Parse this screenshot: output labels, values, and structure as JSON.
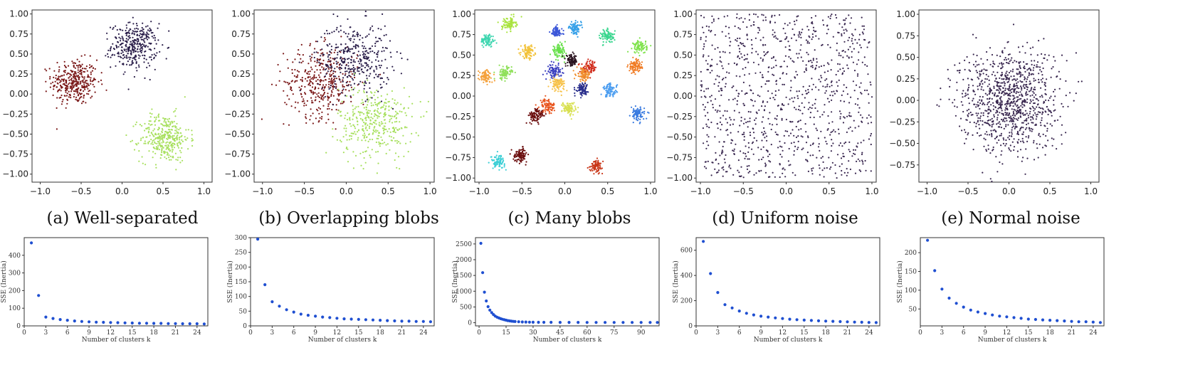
{
  "chart_data": [
    {
      "id": "a",
      "type": "scatter",
      "caption": "(a) Well-separated",
      "xlim": [
        -1.1,
        1.1
      ],
      "ylim": [
        -1.1,
        1.05
      ],
      "xticks": [
        -1.0,
        -0.5,
        0.0,
        0.5,
        1.0
      ],
      "yticks": [
        -1.0,
        -0.75,
        -0.5,
        -0.25,
        0.0,
        0.25,
        0.5,
        0.75,
        1.0
      ],
      "xtick_labels": [
        "−1.0",
        "−0.5",
        "0.0",
        "0.5",
        "1.0"
      ],
      "ytick_labels": [
        "−1.00",
        "−0.75",
        "−0.50",
        "−0.25",
        "0.00",
        "0.25",
        "0.50",
        "0.75",
        "1.00"
      ],
      "clusters": [
        {
          "center": [
            -0.58,
            0.15
          ],
          "spread": 0.14,
          "n": 350,
          "color": "#7a1818"
        },
        {
          "center": [
            0.15,
            0.6
          ],
          "spread": 0.14,
          "n": 350,
          "color": "#2b1f4a"
        },
        {
          "center": [
            0.52,
            -0.55
          ],
          "spread": 0.15,
          "n": 350,
          "color": "#a8e05f"
        }
      ]
    },
    {
      "id": "b",
      "type": "scatter",
      "caption": "(b) Overlapping blobs",
      "xlim": [
        -1.1,
        1.05
      ],
      "ylim": [
        -1.1,
        1.05
      ],
      "xticks": [
        -1.0,
        -0.5,
        0.0,
        0.5,
        1.0
      ],
      "yticks": [
        -1.0,
        -0.75,
        -0.5,
        -0.25,
        0.0,
        0.25,
        0.5,
        0.75,
        1.0
      ],
      "xtick_labels": [
        "−1.0",
        "−0.5",
        "0.0",
        "0.5",
        "1.0"
      ],
      "ytick_labels": [
        "−1.00",
        "−0.75",
        "−0.50",
        "−0.25",
        "0.00",
        "0.25",
        "0.50",
        "0.75",
        "1.00"
      ],
      "clusters": [
        {
          "center": [
            -0.3,
            0.15
          ],
          "spread": 0.22,
          "n": 380,
          "color": "#7a1818"
        },
        {
          "center": [
            0.1,
            0.45
          ],
          "spread": 0.22,
          "n": 380,
          "color": "#2b1f4a"
        },
        {
          "center": [
            0.35,
            -0.35
          ],
          "spread": 0.22,
          "n": 380,
          "color": "#a8e05f"
        }
      ]
    },
    {
      "id": "c",
      "type": "scatter",
      "caption": "(c) Many blobs",
      "xlim": [
        -1.05,
        1.05
      ],
      "ylim": [
        -1.05,
        1.05
      ],
      "xticks": [
        -1.0,
        -0.5,
        0.0,
        0.5,
        1.0
      ],
      "yticks": [
        -1.0,
        -0.75,
        -0.5,
        -0.25,
        0.0,
        0.25,
        0.5,
        0.75,
        1.0
      ],
      "xtick_labels": [
        "−1.0",
        "−0.5",
        "0.0",
        "0.5",
        "1.0"
      ],
      "ytick_labels": [
        "−1.00",
        "−0.75",
        "−0.50",
        "−0.25",
        "0.00",
        "0.25",
        "0.50",
        "0.75",
        "1.00"
      ],
      "clusters": [
        {
          "center": [
            -0.9,
            0.68
          ],
          "spread": 0.04,
          "n": 90,
          "color": "#3fd6b0"
        },
        {
          "center": [
            -0.65,
            0.88
          ],
          "spread": 0.04,
          "n": 90,
          "color": "#a9e33e"
        },
        {
          "center": [
            -0.92,
            0.24
          ],
          "spread": 0.04,
          "n": 90,
          "color": "#f4a13c"
        },
        {
          "center": [
            -0.7,
            0.28
          ],
          "spread": 0.04,
          "n": 90,
          "color": "#8fe05a"
        },
        {
          "center": [
            -0.43,
            0.54
          ],
          "spread": 0.04,
          "n": 90,
          "color": "#f2c23a"
        },
        {
          "center": [
            -0.1,
            0.78
          ],
          "spread": 0.035,
          "n": 90,
          "color": "#3c57d8"
        },
        {
          "center": [
            0.12,
            0.83
          ],
          "spread": 0.035,
          "n": 90,
          "color": "#36a0e8"
        },
        {
          "center": [
            -0.07,
            0.55
          ],
          "spread": 0.04,
          "n": 90,
          "color": "#67e04a"
        },
        {
          "center": [
            0.08,
            0.43
          ],
          "spread": 0.035,
          "n": 90,
          "color": "#2b1420"
        },
        {
          "center": [
            0.28,
            0.34
          ],
          "spread": 0.045,
          "n": 90,
          "color": "#d02a1a"
        },
        {
          "center": [
            0.22,
            0.26
          ],
          "spread": 0.04,
          "n": 90,
          "color": "#f08f2e"
        },
        {
          "center": [
            -0.12,
            0.3
          ],
          "spread": 0.04,
          "n": 90,
          "color": "#3a3fbf"
        },
        {
          "center": [
            -0.08,
            0.15
          ],
          "spread": 0.04,
          "n": 90,
          "color": "#f7c24a"
        },
        {
          "center": [
            0.2,
            0.09
          ],
          "spread": 0.035,
          "n": 90,
          "color": "#2a2f8c"
        },
        {
          "center": [
            0.05,
            -0.15
          ],
          "spread": 0.04,
          "n": 90,
          "color": "#d8e050"
        },
        {
          "center": [
            0.5,
            0.73
          ],
          "spread": 0.04,
          "n": 90,
          "color": "#3bd68f"
        },
        {
          "center": [
            0.88,
            0.6
          ],
          "spread": 0.04,
          "n": 90,
          "color": "#7fe34c"
        },
        {
          "center": [
            0.53,
            0.07
          ],
          "spread": 0.04,
          "n": 90,
          "color": "#4b9df0"
        },
        {
          "center": [
            0.82,
            0.36
          ],
          "spread": 0.04,
          "n": 90,
          "color": "#f07a22"
        },
        {
          "center": [
            0.85,
            -0.22
          ],
          "spread": 0.04,
          "n": 90,
          "color": "#3a7be0"
        },
        {
          "center": [
            -0.2,
            -0.12
          ],
          "spread": 0.045,
          "n": 90,
          "color": "#e8531c"
        },
        {
          "center": [
            -0.33,
            -0.24
          ],
          "spread": 0.045,
          "n": 90,
          "color": "#6b0e0e"
        },
        {
          "center": [
            -0.78,
            -0.8
          ],
          "spread": 0.04,
          "n": 90,
          "color": "#3ccfd6"
        },
        {
          "center": [
            -0.52,
            -0.72
          ],
          "spread": 0.04,
          "n": 90,
          "color": "#6a0d0d"
        },
        {
          "center": [
            0.37,
            -0.85
          ],
          "spread": 0.035,
          "n": 90,
          "color": "#c9381a"
        }
      ]
    },
    {
      "id": "d",
      "type": "scatter",
      "caption": "(d) Uniform noise",
      "xlim": [
        -1.05,
        1.05
      ],
      "ylim": [
        -1.05,
        1.05
      ],
      "xticks": [
        -1.0,
        -0.5,
        0.0,
        0.5,
        1.0
      ],
      "yticks": [
        -1.0,
        -0.75,
        -0.5,
        -0.25,
        0.0,
        0.25,
        0.5,
        0.75,
        1.0
      ],
      "xtick_labels": [
        "−1.0",
        "−0.5",
        "0.0",
        "0.5",
        "1.0"
      ],
      "ytick_labels": [
        "−1.00",
        "−0.75",
        "−0.50",
        "−0.25",
        "0.00",
        "0.25",
        "0.50",
        "0.75",
        "1.00"
      ],
      "uniform": {
        "n": 1000,
        "range": [
          -1,
          1
        ],
        "color": "#3a2850"
      }
    },
    {
      "id": "e",
      "type": "scatter",
      "caption": "(e) Normal noise",
      "xlim": [
        -1.1,
        1.1
      ],
      "ylim": [
        -0.95,
        1.05
      ],
      "xticks": [
        -1.0,
        -0.5,
        0.0,
        0.5,
        1.0
      ],
      "yticks": [
        -0.75,
        -0.5,
        -0.25,
        0.0,
        0.25,
        0.5,
        0.75,
        1.0
      ],
      "xtick_labels": [
        "−1.0",
        "−0.5",
        "0.0",
        "0.5",
        "1.0"
      ],
      "ytick_labels": [
        "−0.75",
        "−0.50",
        "−0.25",
        "0.00",
        "0.25",
        "0.50",
        "0.75",
        "1.00"
      ],
      "normal": {
        "n": 1000,
        "center": [
          0,
          0
        ],
        "spread": 0.3,
        "color": "#3a2850"
      }
    },
    {
      "id": "a2",
      "type": "scatter",
      "xlabel": "Number of clusters k",
      "ylabel": "SSE (Inertia)",
      "xlim": [
        0,
        25.5
      ],
      "ylim": [
        0,
        500
      ],
      "xticks": [
        0,
        3,
        6,
        9,
        12,
        15,
        18,
        21,
        24
      ],
      "yticks": [
        0,
        100,
        200,
        300,
        400
      ],
      "xtick_labels": [
        "0",
        "3",
        "6",
        "9",
        "12",
        "15",
        "18",
        "21",
        "24"
      ],
      "ytick_labels": [
        "0",
        "100",
        "200",
        "300",
        "400"
      ],
      "x": [
        1,
        2,
        3,
        4,
        5,
        6,
        7,
        8,
        9,
        10,
        11,
        12,
        13,
        14,
        15,
        16,
        17,
        18,
        19,
        20,
        21,
        22,
        23,
        24,
        25
      ],
      "y": [
        470,
        172,
        50,
        42,
        36,
        32,
        28,
        25,
        23,
        21,
        20,
        19,
        18,
        17,
        16,
        15,
        15,
        14,
        14,
        13,
        13,
        12,
        12,
        12,
        11
      ]
    },
    {
      "id": "b2",
      "type": "scatter",
      "xlabel": "Number of clusters k",
      "ylabel": "SSE (Inertia)",
      "xlim": [
        0,
        25.5
      ],
      "ylim": [
        0,
        300
      ],
      "xticks": [
        0,
        3,
        6,
        9,
        12,
        15,
        18,
        21,
        24
      ],
      "yticks": [
        0,
        50,
        100,
        150,
        200,
        250,
        300
      ],
      "xtick_labels": [
        "0",
        "3",
        "6",
        "9",
        "12",
        "15",
        "18",
        "21",
        "24"
      ],
      "ytick_labels": [
        "0",
        "50",
        "100",
        "150",
        "200",
        "250",
        "300"
      ],
      "x": [
        1,
        2,
        3,
        4,
        5,
        6,
        7,
        8,
        9,
        10,
        11,
        12,
        13,
        14,
        15,
        16,
        17,
        18,
        19,
        20,
        21,
        22,
        23,
        24,
        25
      ],
      "y": [
        295,
        140,
        82,
        67,
        55,
        47,
        40,
        36,
        33,
        30,
        28,
        26,
        24,
        23,
        22,
        21,
        20,
        19,
        18,
        17,
        16,
        16,
        15,
        15,
        14
      ]
    },
    {
      "id": "c2",
      "type": "scatter",
      "xlabel": "Number of clusters k",
      "ylabel": "SSE (Inertia)",
      "xlim": [
        -2,
        100
      ],
      "ylim": [
        -100,
        2700
      ],
      "xticks": [
        0,
        15,
        30,
        45,
        60,
        75,
        90
      ],
      "yticks": [
        0,
        500,
        1000,
        1500,
        2000,
        2500
      ],
      "xtick_labels": [
        "0",
        "15",
        "30",
        "45",
        "60",
        "75",
        "90"
      ],
      "ytick_labels": [
        "0",
        "500",
        "1000",
        "1500",
        "2000",
        "2500"
      ],
      "x": [
        1,
        2,
        3,
        4,
        5,
        6,
        7,
        8,
        9,
        10,
        11,
        12,
        13,
        14,
        15,
        16,
        17,
        18,
        19,
        20,
        22,
        24,
        26,
        28,
        30,
        33,
        36,
        40,
        45,
        50,
        55,
        60,
        65,
        70,
        75,
        80,
        85,
        90,
        95,
        99
      ],
      "y": [
        2520,
        1590,
        970,
        690,
        510,
        400,
        320,
        260,
        210,
        175,
        150,
        128,
        110,
        95,
        80,
        68,
        58,
        50,
        43,
        37,
        30,
        25,
        21,
        18,
        16,
        14,
        13,
        12,
        11,
        10,
        10,
        9,
        9,
        9,
        9,
        8,
        8,
        8,
        8,
        8
      ]
    },
    {
      "id": "d2",
      "type": "scatter",
      "xlabel": "Number of clusters k",
      "ylabel": "SSE (Inertia)",
      "xlim": [
        0,
        25.5
      ],
      "ylim": [
        0,
        700
      ],
      "xticks": [
        0,
        3,
        6,
        9,
        12,
        15,
        18,
        21,
        24
      ],
      "yticks": [
        0,
        200,
        400,
        600
      ],
      "xtick_labels": [
        "0",
        "3",
        "6",
        "9",
        "12",
        "15",
        "18",
        "21",
        "24"
      ],
      "ytick_labels": [
        "0",
        "200",
        "400",
        "600"
      ],
      "x": [
        1,
        2,
        3,
        4,
        5,
        6,
        7,
        8,
        9,
        10,
        11,
        12,
        13,
        14,
        15,
        16,
        17,
        18,
        19,
        20,
        21,
        22,
        23,
        24,
        25
      ],
      "y": [
        670,
        415,
        265,
        168,
        142,
        118,
        100,
        87,
        77,
        70,
        63,
        58,
        53,
        49,
        46,
        43,
        40,
        38,
        36,
        34,
        32,
        30,
        29,
        27,
        26
      ]
    },
    {
      "id": "e2",
      "type": "scatter",
      "xlabel": "Number of clusters k",
      "ylabel": "SSE (Inertia)",
      "xlim": [
        0,
        25.5
      ],
      "ylim": [
        5,
        240
      ],
      "xticks": [
        0,
        3,
        6,
        9,
        12,
        15,
        18,
        21,
        24
      ],
      "yticks": [
        50,
        100,
        150,
        200
      ],
      "xtick_labels": [
        "0",
        "3",
        "6",
        "9",
        "12",
        "15",
        "18",
        "21",
        "24"
      ],
      "ytick_labels": [
        "50",
        "100",
        "150",
        "200"
      ],
      "x": [
        1,
        2,
        3,
        4,
        5,
        6,
        7,
        8,
        9,
        10,
        11,
        12,
        13,
        14,
        15,
        16,
        17,
        18,
        19,
        20,
        21,
        22,
        23,
        24,
        25
      ],
      "y": [
        233,
        152,
        103,
        79,
        65,
        55,
        47,
        42,
        38,
        34,
        31,
        29,
        27,
        25,
        23,
        22,
        21,
        20,
        19,
        18,
        17,
        16,
        16,
        15,
        14
      ]
    }
  ]
}
